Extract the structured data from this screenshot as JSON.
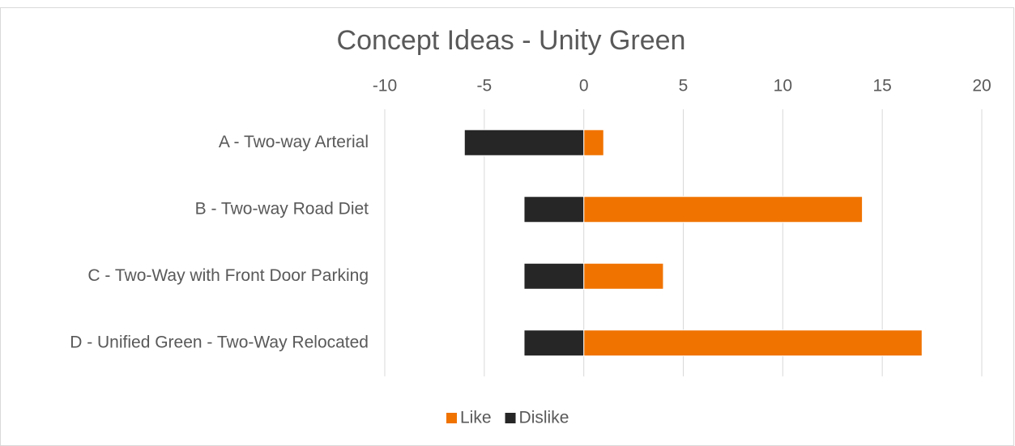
{
  "chart_data": {
    "type": "bar",
    "orientation": "horizontal",
    "title": "Concept Ideas - Unity Green",
    "categories": [
      "A - Two-way Arterial",
      "B - Two-way Road Diet",
      "C - Two-Way with Front Door Parking",
      "D - Unified Green - Two-Way Relocated"
    ],
    "series": [
      {
        "name": "Like",
        "color": "#f07300",
        "values": [
          1,
          14,
          4,
          17
        ]
      },
      {
        "name": "Dislike",
        "color": "#262626",
        "values": [
          -6,
          -3,
          -3,
          -3
        ]
      }
    ],
    "xlim": [
      -10,
      20
    ],
    "xticks": [
      -10,
      -5,
      0,
      5,
      10,
      15,
      20
    ],
    "grid": true,
    "legend": "bottom"
  }
}
